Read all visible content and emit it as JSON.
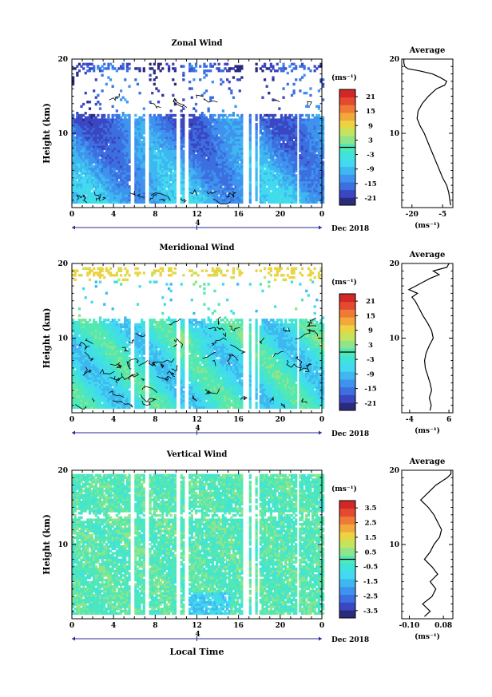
{
  "figure": {
    "month_label": "Dec 2018",
    "day_label": "4",
    "xlabel": "Local Time",
    "ylabel": "Height (km)",
    "average_title": "Average",
    "units": "(ms⁻¹)",
    "x_ticks": [
      "0",
      "4",
      "8",
      "12",
      "16",
      "20",
      "0"
    ],
    "y_ticks": [
      "20",
      "10"
    ]
  },
  "colors": {
    "scale": [
      "#2b2b7e",
      "#3b46c2",
      "#3c6fe0",
      "#3f93ee",
      "#3fb7f0",
      "#43d9f0",
      "#3fe3dc",
      "#52e8b4",
      "#8ee58a",
      "#c4e45e",
      "#ecd343",
      "#f3a83a",
      "#ef7a35",
      "#e34a30",
      "#d22727"
    ],
    "axis_mark": "#2a2a9a"
  },
  "chart_data": [
    {
      "type": "heatmap",
      "title": "Zonal Wind",
      "xlabel": "",
      "ylabel": "Height (km)",
      "xlim": [
        0,
        24
      ],
      "ylim": [
        0,
        20
      ],
      "colorbar": {
        "label": "(ms⁻¹)",
        "ticks": [
          "21",
          "15",
          "9",
          "3",
          "-3",
          "-9",
          "-15",
          "-21"
        ],
        "range": [
          -24,
          24
        ]
      },
      "average": {
        "title": "Average",
        "x_ticks": [
          "-20",
          "-5"
        ],
        "xlabel": "(ms⁻¹)",
        "xlim": [
          -25,
          0
        ],
        "profile": [
          [
            0.3,
            -1
          ],
          [
            1,
            -1.5
          ],
          [
            2,
            -2
          ],
          [
            3,
            -3
          ],
          [
            4,
            -5
          ],
          [
            5,
            -6.5
          ],
          [
            6,
            -8
          ],
          [
            7,
            -9.5
          ],
          [
            8,
            -11
          ],
          [
            9,
            -12.5
          ],
          [
            10,
            -14
          ],
          [
            11,
            -16
          ],
          [
            12,
            -17.5
          ],
          [
            13,
            -17
          ],
          [
            14,
            -15
          ],
          [
            15,
            -12
          ],
          [
            16,
            -8
          ],
          [
            16.5,
            -4
          ],
          [
            17,
            -3
          ],
          [
            17.5,
            -6
          ],
          [
            18,
            -10
          ],
          [
            18.4,
            -16
          ],
          [
            18.7,
            -22
          ],
          [
            19,
            -23.5
          ],
          [
            19.5,
            -24
          ],
          [
            20,
            -24
          ]
        ]
      }
    },
    {
      "type": "heatmap",
      "title": "Meridional Wind",
      "xlabel": "",
      "ylabel": "Height (km)",
      "xlim": [
        0,
        24
      ],
      "ylim": [
        0,
        20
      ],
      "colorbar": {
        "label": "(ms⁻¹)",
        "ticks": [
          "21",
          "15",
          "9",
          "3",
          "-3",
          "-9",
          "-15",
          "-21"
        ],
        "range": [
          -24,
          24
        ]
      },
      "average": {
        "title": "Average",
        "x_ticks": [
          "-4",
          "6"
        ],
        "xlabel": "(ms⁻¹)",
        "xlim": [
          -6,
          7
        ],
        "profile": [
          [
            0.3,
            1.2
          ],
          [
            1,
            1.5
          ],
          [
            2,
            1.0
          ],
          [
            3,
            1.6
          ],
          [
            4,
            1.2
          ],
          [
            5,
            0.6
          ],
          [
            6,
            0.0
          ],
          [
            7,
            -0.2
          ],
          [
            8,
            0.2
          ],
          [
            9,
            1.0
          ],
          [
            10,
            2.0
          ],
          [
            11,
            1.6
          ],
          [
            12,
            0.6
          ],
          [
            13,
            -0.6
          ],
          [
            14,
            -1.6
          ],
          [
            15,
            -2.6
          ],
          [
            15.5,
            -3.4
          ],
          [
            16,
            -2.0
          ],
          [
            16.5,
            -4.2
          ],
          [
            17,
            -2.4
          ],
          [
            17.5,
            -0.6
          ],
          [
            18,
            1.2
          ],
          [
            18.5,
            3.5
          ],
          [
            19,
            2.0
          ],
          [
            19.5,
            5.5
          ],
          [
            20,
            6.0
          ]
        ]
      }
    },
    {
      "type": "heatmap",
      "title": "Vertical Wind",
      "xlabel": "Local Time",
      "ylabel": "Height (km)",
      "xlim": [
        0,
        24
      ],
      "ylim": [
        0,
        20
      ],
      "colorbar": {
        "label": "(ms⁻¹)",
        "ticks": [
          "3.5",
          "2.5",
          "1.5",
          "0.5",
          "-0.5",
          "-1.5",
          "-2.5",
          "-3.5"
        ],
        "range": [
          -4,
          4
        ]
      },
      "average": {
        "title": "Average",
        "x_ticks": [
          "-0.10",
          "0.08"
        ],
        "xlabel": "(ms⁻¹)",
        "xlim": [
          -0.14,
          0.13
        ],
        "profile": [
          [
            0.3,
            -0.02
          ],
          [
            1,
            0.01
          ],
          [
            2,
            -0.03
          ],
          [
            3,
            0.02
          ],
          [
            4,
            0.04
          ],
          [
            5,
            0.01
          ],
          [
            6,
            0.05
          ],
          [
            7,
            0.02
          ],
          [
            8,
            -0.02
          ],
          [
            9,
            0.01
          ],
          [
            10,
            0.03
          ],
          [
            11,
            0.06
          ],
          [
            12,
            0.07
          ],
          [
            13,
            0.05
          ],
          [
            14,
            0.03
          ],
          [
            15,
            0.0
          ],
          [
            16,
            -0.04
          ],
          [
            17,
            0.0
          ],
          [
            18,
            0.04
          ],
          [
            18.5,
            0.07
          ],
          [
            19,
            0.1
          ],
          [
            19.5,
            0.12
          ],
          [
            20,
            0.12
          ]
        ]
      }
    }
  ]
}
